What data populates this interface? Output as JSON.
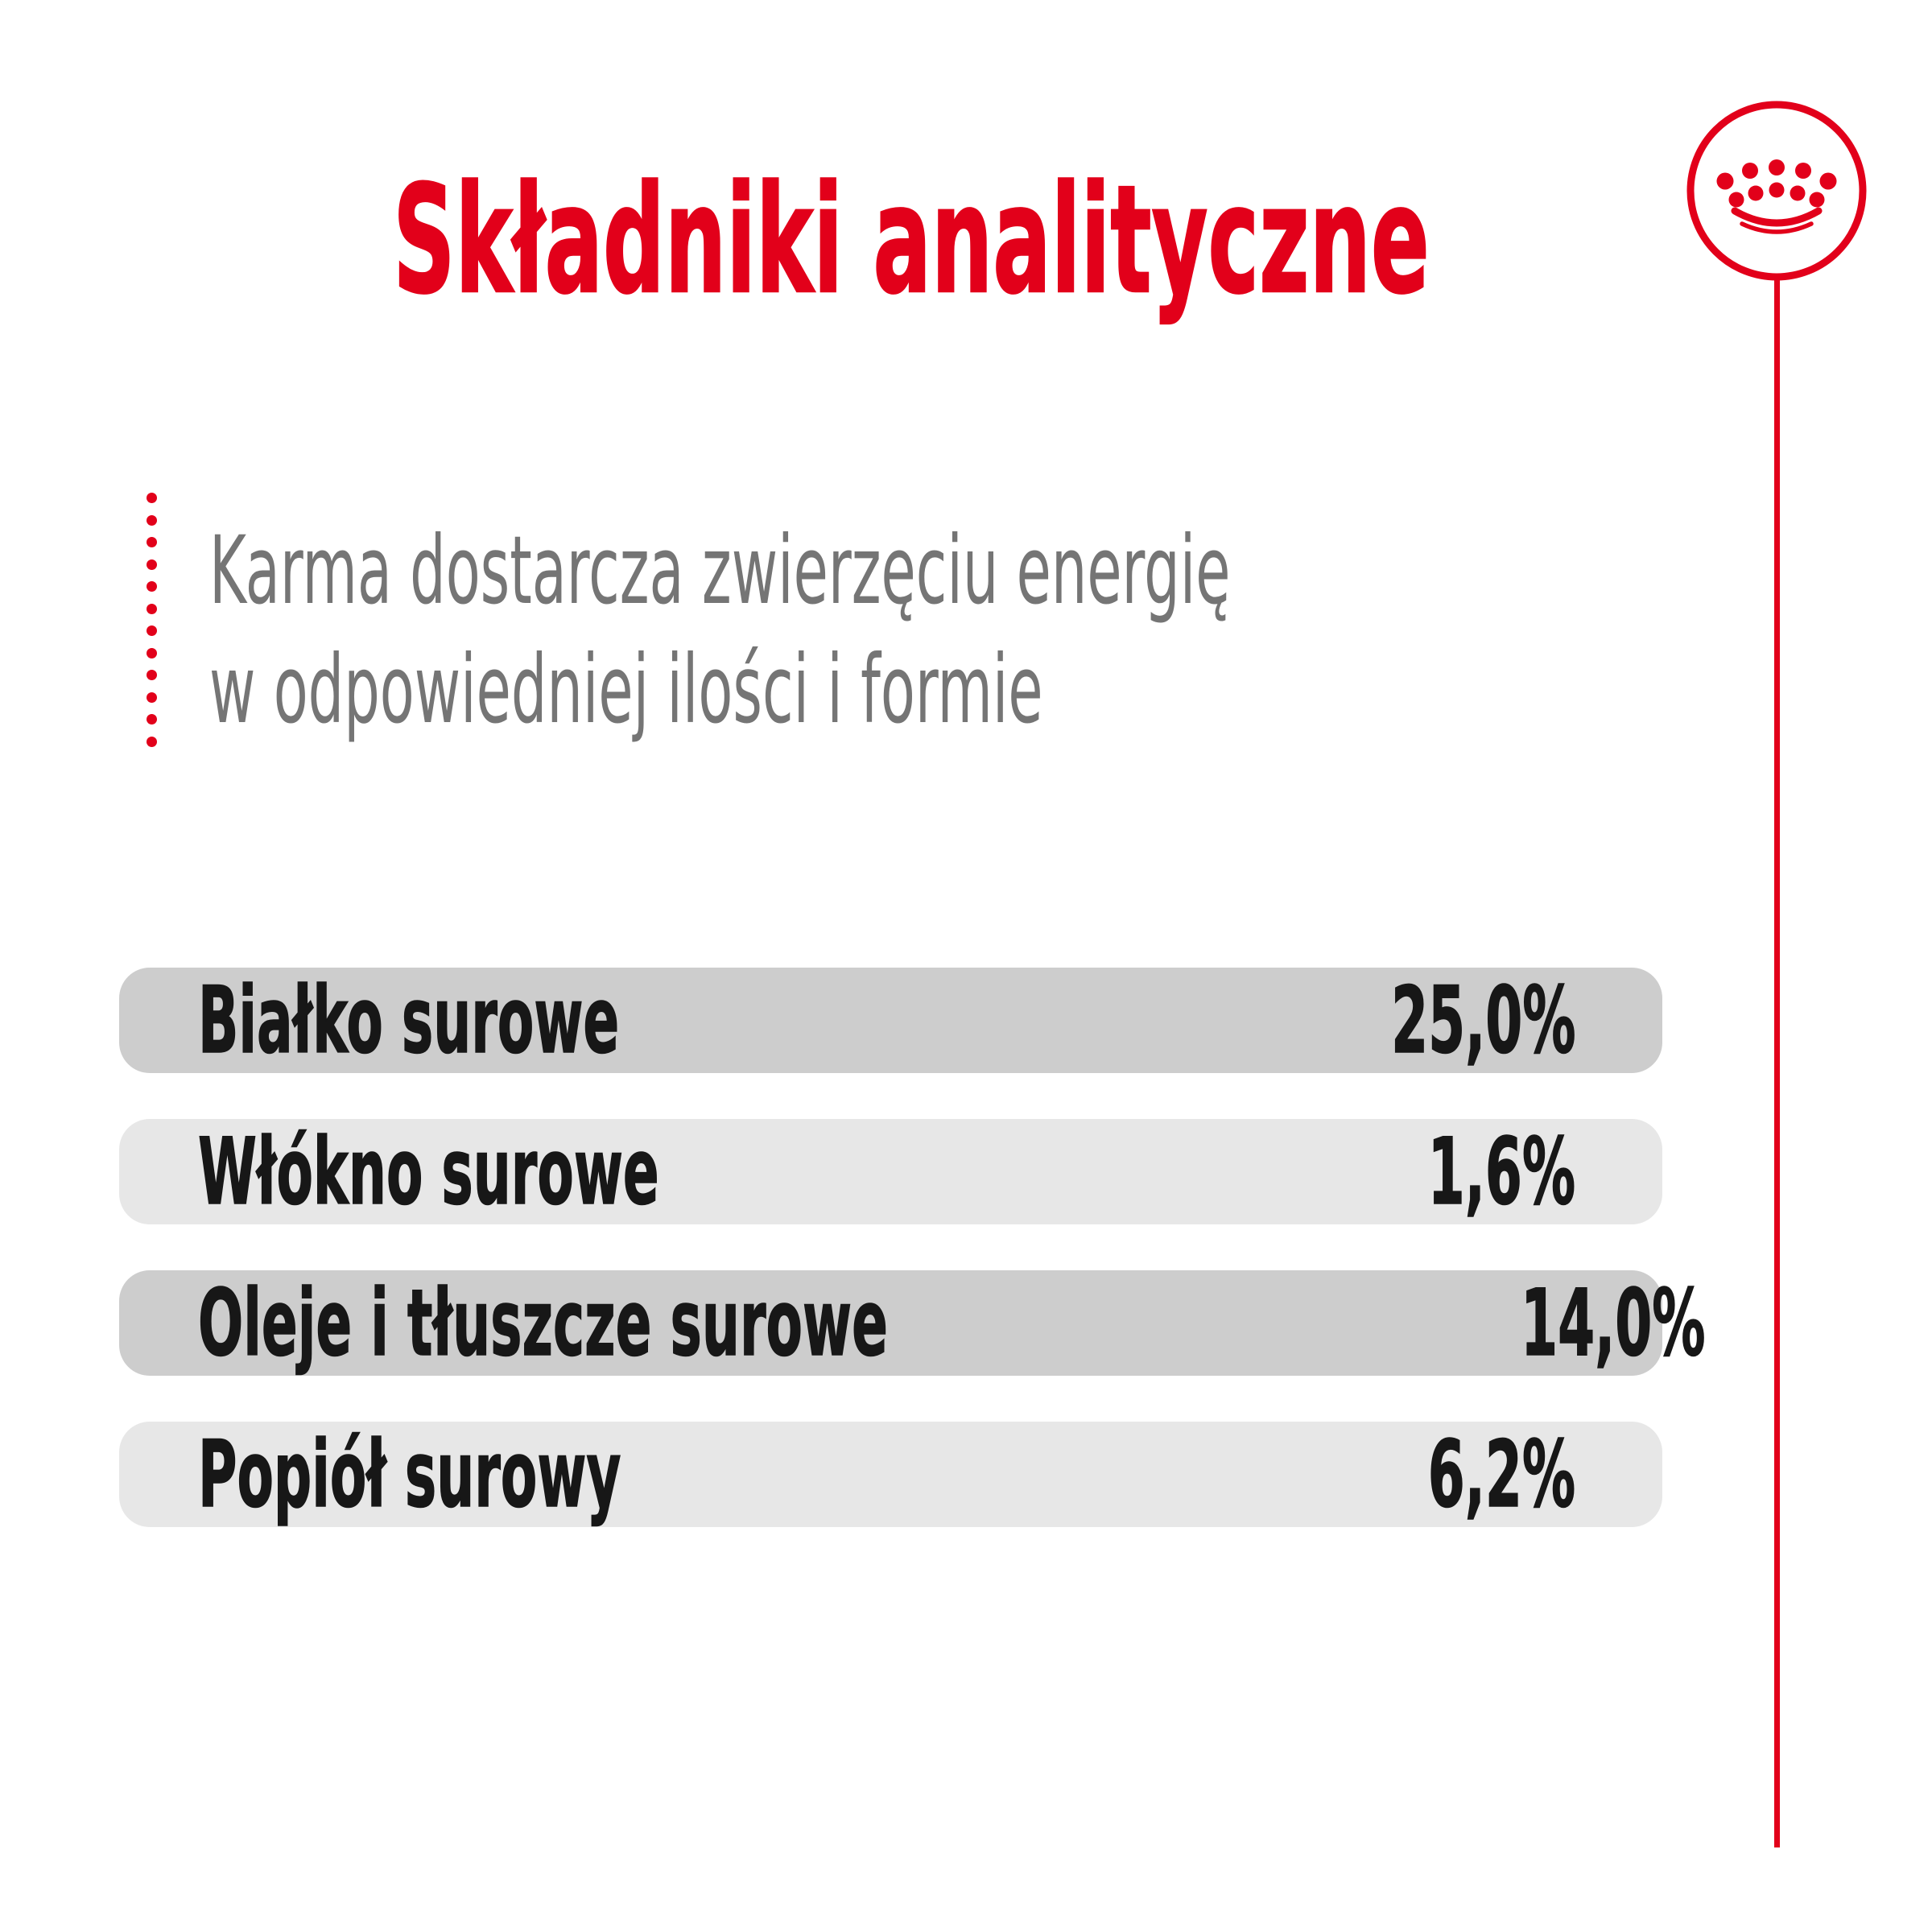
{
  "brand": {
    "accent_color": "#e2001a",
    "logo_icon": "royal-canin-crown-icon"
  },
  "header": {
    "title": "Składniki analityczne"
  },
  "note": {
    "line1": "Karma dostarcza zwierzęciu energię",
    "line2": "w odpowiedniej ilości i formie"
  },
  "table": {
    "row_background_dark": "#cdcdcd",
    "row_background_light": "#e7e7e7",
    "rows": [
      {
        "label": "Białko surowe",
        "value": "25,0%"
      },
      {
        "label": "Włókno surowe",
        "value": "1,6%"
      },
      {
        "label": "Oleje i tłuszcze surowe",
        "value": "14,0%"
      },
      {
        "label": "Popiół surowy",
        "value": "6,2%"
      }
    ]
  },
  "decorations": {
    "dotted_line_dot_count": 12
  }
}
